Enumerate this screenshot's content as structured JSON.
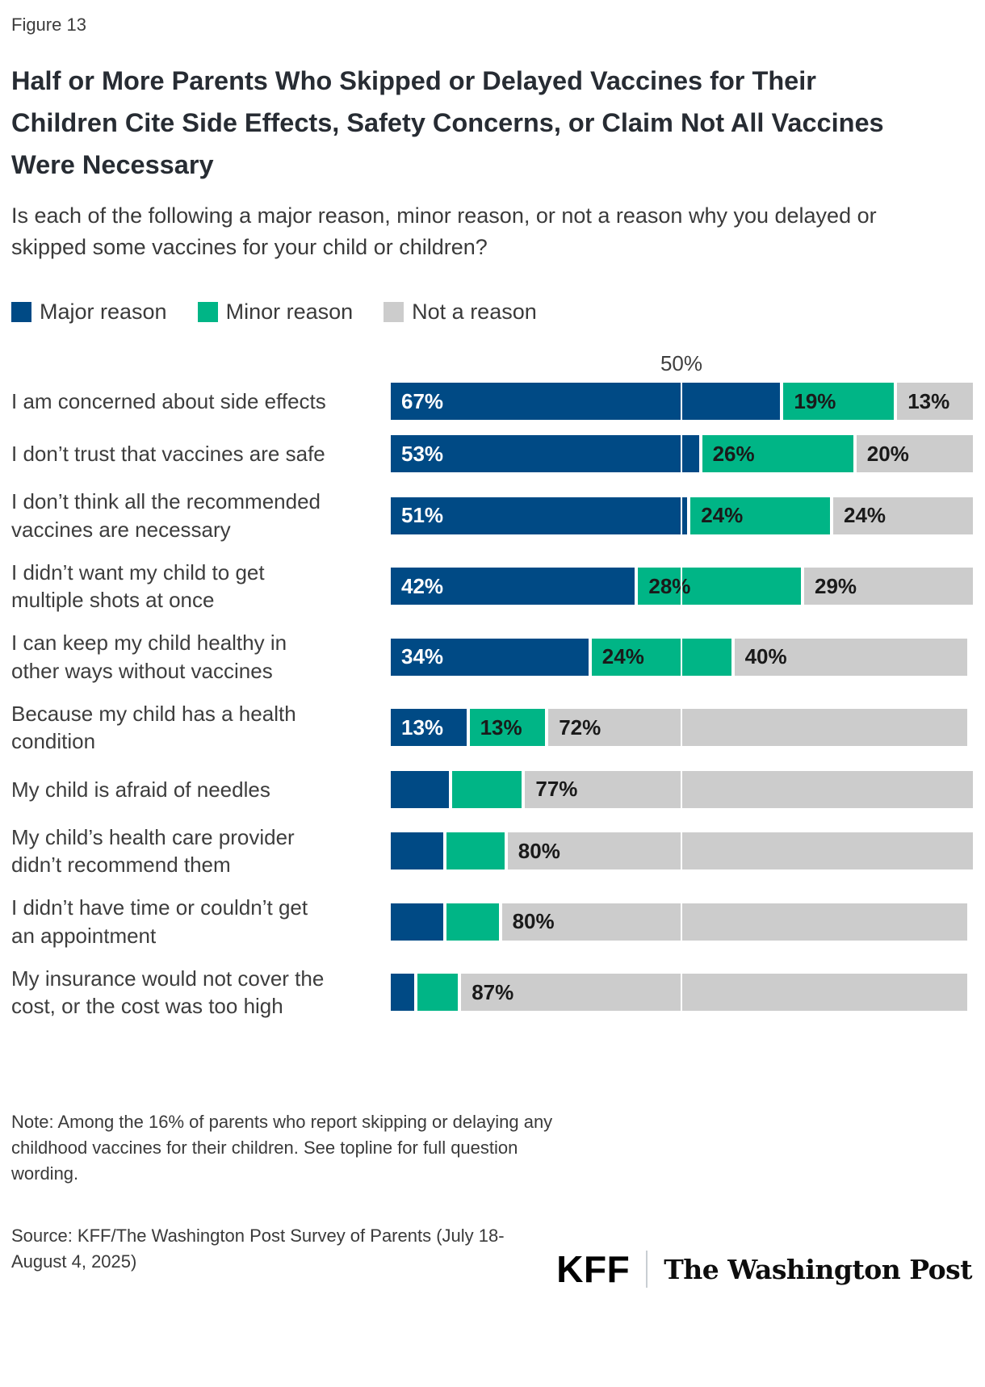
{
  "figure_label": "Figure 13",
  "title": "Half or More Parents Who Skipped or Delayed Vaccines for Their Children Cite Side Effects, Safety Concerns, or Claim Not All Vaccines Were Necessary",
  "subtitle": "Is each of the following a major reason, minor reason, or not a reason why you delayed or skipped some vaccines for your child or children?",
  "legend": {
    "items": [
      {
        "label": "Major reason",
        "color": "#004a85"
      },
      {
        "label": "Minor reason",
        "color": "#00b586"
      },
      {
        "label": "Not a reason",
        "color": "#cccccc"
      }
    ]
  },
  "chart_data": {
    "type": "bar",
    "orientation": "horizontal",
    "stacked": true,
    "unit": "%",
    "xlim": [
      0,
      100
    ],
    "axis_tick": {
      "value": 50,
      "label": "50%"
    },
    "gridline_color": "#ffffff",
    "categories": [
      "I am concerned about side effects",
      "I don’t trust that vaccines are safe",
      "I don’t think all the recommended vaccines are necessary",
      "I didn’t want my child to get multiple shots at once",
      "I can keep my child healthy in other ways without vaccines",
      "Because my child has a health condition",
      "My child is afraid of needles",
      "My child’s health care provider didn’t recommend them",
      "I didn’t have time or couldn’t get an appointment",
      "My insurance would not cover the cost, or the cost was too high"
    ],
    "series": [
      {
        "key": "major",
        "name": "Major reason",
        "color": "#004a85",
        "label_color": "#ffffff",
        "values": [
          67,
          53,
          51,
          42,
          34,
          13,
          10,
          9,
          9,
          4
        ],
        "value_labels": [
          "67%",
          "53%",
          "51%",
          "42%",
          "34%",
          "13%",
          "",
          "",
          "",
          ""
        ]
      },
      {
        "key": "minor",
        "name": "Minor reason",
        "color": "#00b586",
        "label_color": "#1a1a1a",
        "values": [
          19,
          26,
          24,
          28,
          24,
          13,
          12,
          10,
          9,
          7
        ],
        "value_labels": [
          "19%",
          "26%",
          "24%",
          "28%",
          "24%",
          "13%",
          "",
          "",
          "",
          ""
        ]
      },
      {
        "key": "none",
        "name": "Not a reason",
        "color": "#cccccc",
        "label_color": "#1a1a1a",
        "values": [
          13,
          20,
          24,
          29,
          40,
          72,
          77,
          80,
          80,
          87
        ],
        "value_labels": [
          "13%",
          "20%",
          "24%",
          "29%",
          "40%",
          "72%",
          "77%",
          "80%",
          "80%",
          "87%"
        ]
      }
    ],
    "unlabeled_segment_values_estimated": true
  },
  "note": "Note: Among the 16% of parents who report skipping or delaying any childhood vaccines for their children. See topline for full question wording.",
  "source": "Source: KFF/The Washington Post Survey of Parents (July 18-August 4, 2025)",
  "logos": {
    "kff": "KFF",
    "wapo": "The Washington Post"
  }
}
